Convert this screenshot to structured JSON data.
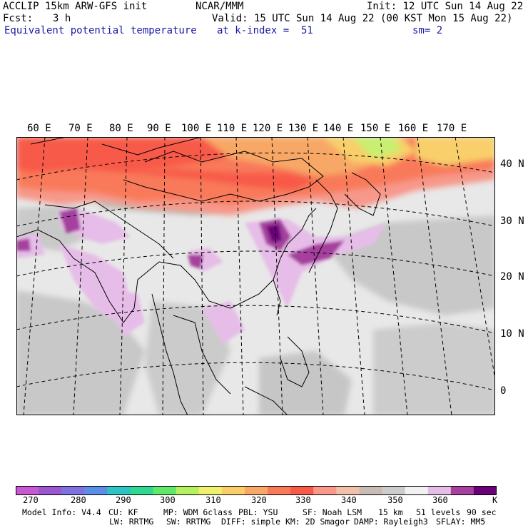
{
  "header": {
    "model": "ACCLIP 15km ARW-GFS init",
    "center": "NCAR/MMM",
    "init": "Init: 12 UTC Sun 14 Aug 22",
    "fcst_label": "Fcst:",
    "fcst_value": "3 h",
    "valid": "Valid: 15 UTC Sun 14 Aug 22 (00 KST Mon 15 Aug 22)",
    "field": "Equivalent potential temperature",
    "level": "at k-index =  51",
    "smoothing": "sm= 2"
  },
  "map": {
    "longitude_labels": [
      "60 E",
      "70 E",
      "80 E",
      "90 E",
      "100 E",
      "110 E",
      "120 E",
      "130 E",
      "140 E",
      "150 E",
      "160 E",
      "170 E"
    ],
    "latitude_labels": [
      "40 N",
      "30 N",
      "20 N",
      "10 N",
      "0"
    ],
    "colors": {
      "border": "#000000",
      "graticule": "#000000",
      "ocean_base": "#e9e9e9"
    }
  },
  "colorbar": {
    "colors": [
      "#c857d3",
      "#9b55cf",
      "#7f72e0",
      "#5a8ee8",
      "#2fc4c4",
      "#2fd890",
      "#5fe86a",
      "#b5f060",
      "#f0f070",
      "#f8cf6a",
      "#f8a866",
      "#f87a5a",
      "#f85a4a",
      "#f7988a",
      "#f0c0a8",
      "#c8bcb4",
      "#cccccc",
      "#f2f2f2",
      "#e6bde8",
      "#a5409e",
      "#6a0077"
    ],
    "tick_labels": [
      "270",
      "280",
      "290",
      "300",
      "310",
      "320",
      "330",
      "340",
      "350",
      "360"
    ],
    "unit": "K"
  },
  "footer": {
    "line1": [
      "Model Info: V4.4",
      "CU: KF",
      "MP: WDM 6class",
      "PBL: YSU",
      "SF: Noah LSM",
      "15 km",
      "51 levels",
      "90 sec"
    ],
    "line2": [
      "LW: RRTMG",
      "SW: RRTMG",
      "DIFF: simple",
      "KM: 2D Smagor",
      "DAMP: Rayleigh3",
      "SFLAY: MM5"
    ]
  }
}
